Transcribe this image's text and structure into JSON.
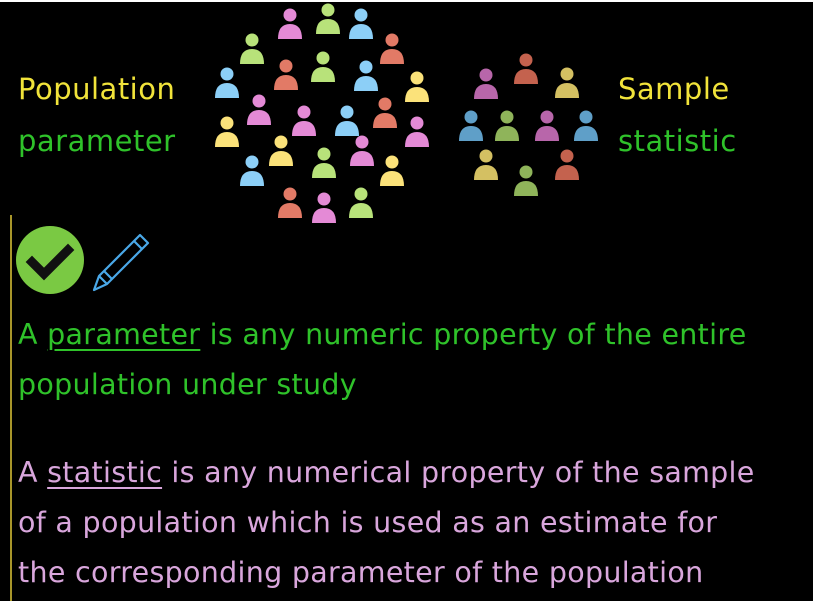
{
  "labels": {
    "population": "Population",
    "parameter": "parameter",
    "sample": "Sample",
    "statistic": "statistic"
  },
  "definitions": {
    "parameter": {
      "prefix": "A ",
      "term": "parameter",
      "line1_rest": " is any numeric property of the entire",
      "line2": "population under study"
    },
    "statistic": {
      "prefix": "A ",
      "term": "statistic",
      "line1_rest": " is any numerical property of the sample",
      "line2": "of a population which is used as an estimate for",
      "line3": "the corresponding parameter of the population"
    }
  },
  "icons": [
    "check-circle-icon",
    "pencil-icon",
    "person-icon"
  ],
  "colors": {
    "yellow_text": "#f1e33a",
    "green_text": "#2fc22a",
    "pink_text": "#d9a6dc",
    "check_circle": "#7ac943",
    "pencil": "#4aa8e8",
    "person_pink": "#e48ad6",
    "person_green": "#b8e27a",
    "person_blue": "#8ccff7",
    "person_red": "#e27a66",
    "person_yellow": "#fbe27a",
    "sample_purple": "#b866aa",
    "sample_red": "#c4624e",
    "sample_yellow": "#d4c062",
    "sample_blue": "#5f9fc8",
    "sample_green": "#8fb45a"
  }
}
